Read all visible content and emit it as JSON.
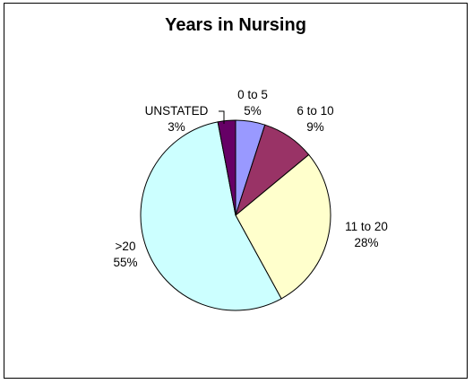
{
  "chart_data": {
    "type": "pie",
    "title": "Years in Nursing",
    "slices": [
      {
        "label": "0 to 5",
        "value": 5,
        "percent_label": "5%",
        "color": "#9999ff"
      },
      {
        "label": "6 to 10",
        "value": 9,
        "percent_label": "9%",
        "color": "#993366"
      },
      {
        "label": "11 to 20",
        "value": 28,
        "percent_label": "28%",
        "color": "#ffffcc"
      },
      {
        "label": ">20",
        "value": 55,
        "percent_label": "55%",
        "color": "#ccffff"
      },
      {
        "label": "UNSTATED",
        "value": 3,
        "percent_label": "3%",
        "color": "#660066"
      }
    ],
    "legend": "none",
    "start_angle_deg": 0,
    "direction": "clockwise"
  }
}
